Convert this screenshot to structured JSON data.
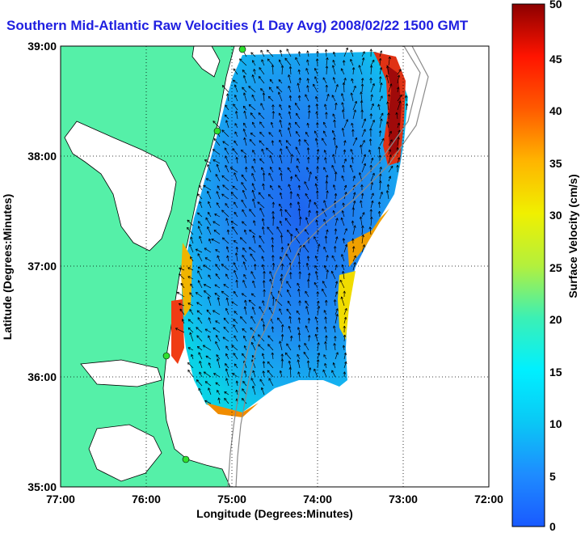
{
  "title": "Southern Mid-Atlantic Raw Velocities (1 Day Avg) 2008/02/22 1500 GMT",
  "xlabel": "Longitude (Degrees:Minutes)",
  "ylabel": "Latitude (Degrees:Minutes)",
  "colorbar_label": "Surface Velocity (cm/s)",
  "x_ticks": [
    "77:00",
    "76:00",
    "75:00",
    "74:00",
    "73:00",
    "72:00"
  ],
  "y_ticks": [
    "39:00",
    "38:00",
    "37:00",
    "36:00",
    "35:00"
  ],
  "colorbar_ticks": [
    "50",
    "45",
    "40",
    "35",
    "30",
    "25",
    "20",
    "15",
    "10",
    "5",
    "0"
  ],
  "colors": {
    "land": "#55f0a8",
    "ocean_low": "#1e78f0",
    "ocean_mid": "#0ad2f0",
    "high": "#c81414",
    "grid": "#000000",
    "title": "#1f1fe0"
  },
  "chart_data": {
    "type": "heatmap",
    "title": "Southern Mid-Atlantic Raw Velocities (1 Day Avg) 2008/02/22 1500 GMT",
    "xlabel": "Longitude (Degrees:Minutes)",
    "ylabel": "Latitude (Degrees:Minutes)",
    "xlim": [
      -77.0,
      -72.0
    ],
    "ylim": [
      35.0,
      39.0
    ],
    "colorbar": {
      "label": "Surface Velocity (cm/s)",
      "range": [
        0,
        50
      ]
    },
    "grid": true
  }
}
